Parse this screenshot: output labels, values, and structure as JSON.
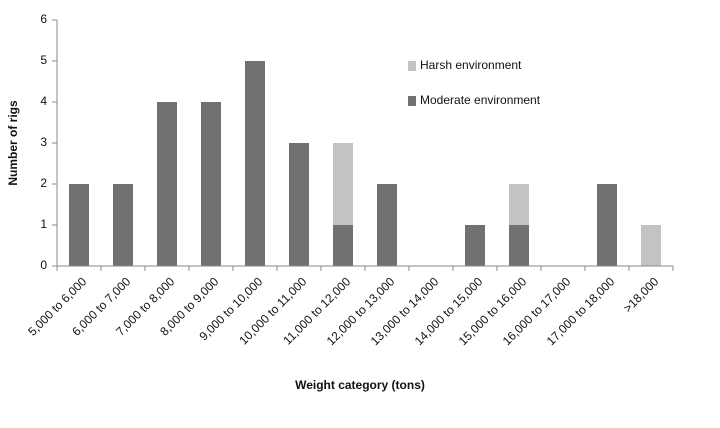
{
  "chart_data": {
    "type": "stacked_bar",
    "xlabel": "Weight category (tons)",
    "ylabel": "Number of rigs",
    "categories": [
      "5,000 to 6,000",
      "6,000 to 7,000",
      "7,000 to 8,000",
      "8,000 to 9,000",
      "9,000 to 10,000",
      "10,000 to 11,000",
      "11,000 to 12,000",
      "12,000 to 13,000",
      "13,000 to 14,000",
      "14,000 to 15,000",
      "15,000 to 16,000",
      "16,000 to 17,000",
      "17,000 to 18,000",
      ">18,000"
    ],
    "series": [
      {
        "name": "Moderate environment",
        "color": "#717171",
        "values": [
          2,
          2,
          4,
          4,
          5,
          3,
          1,
          2,
          0,
          1,
          1,
          0,
          2,
          0
        ]
      },
      {
        "name": "Harsh environment",
        "color": "#c3c3c3",
        "values": [
          0,
          0,
          0,
          0,
          0,
          0,
          2,
          0,
          0,
          0,
          1,
          0,
          0,
          1
        ]
      }
    ],
    "ylim": [
      0,
      6
    ],
    "yticks": [
      0,
      1,
      2,
      3,
      4,
      5,
      6
    ],
    "legend": "right"
  }
}
